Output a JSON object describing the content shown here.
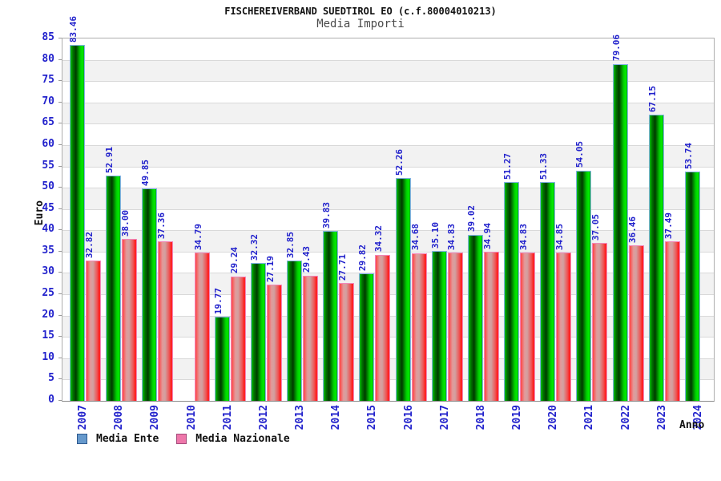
{
  "chart_data": {
    "type": "bar",
    "title": "FISCHEREIVERBAND SUEDTIROL EO (c.f.80004010213)",
    "subtitle": "Media Importi",
    "xlabel": "Anno",
    "ylabel": "Euro",
    "ylim": [
      0,
      85
    ],
    "ytick_step": 5,
    "yticks": [
      0,
      5,
      10,
      15,
      20,
      25,
      30,
      35,
      40,
      45,
      50,
      55,
      60,
      65,
      70,
      75,
      80,
      85
    ],
    "grid": true,
    "background_bands": true,
    "legend_position": "bottom-left",
    "value_label_format": "0.00",
    "categories": [
      "2007",
      "2008",
      "2009",
      "2010",
      "2011",
      "2012",
      "2013",
      "2014",
      "2015",
      "2016",
      "2017",
      "2018",
      "2019",
      "2020",
      "2021",
      "2022",
      "2023",
      "2024"
    ],
    "series": [
      {
        "name": "Media Ente",
        "legend_color": "#6699cc",
        "legend_border": "#2f5a8f",
        "bar_border": "#85b2e8",
        "bar_gradient": [
          "#00c000 0%",
          "#007300 18%",
          "#003c00 40%",
          "#00cc00 72%",
          "#00ee00 88%",
          "#00a800 100%"
        ],
        "values": [
          83.46,
          52.91,
          49.85,
          null,
          19.77,
          32.32,
          32.85,
          39.83,
          29.82,
          52.26,
          35.1,
          39.02,
          51.27,
          51.33,
          54.05,
          79.06,
          67.15,
          53.74
        ]
      },
      {
        "name": "Media Nazionale",
        "legend_color": "#ee77aa",
        "legend_border": "#a34a7a",
        "bar_border": "#f287ba",
        "bar_gradient": [
          "#ff4444 0%",
          "#e39a9a 28%",
          "#d2a0a0 48%",
          "#ee5555 78%",
          "#ff1515 96%",
          "#ff4040 100%"
        ],
        "values": [
          32.82,
          38.0,
          37.36,
          34.79,
          29.24,
          27.19,
          29.43,
          27.71,
          34.32,
          34.68,
          34.83,
          34.94,
          34.83,
          34.85,
          37.05,
          36.46,
          37.49,
          null
        ]
      }
    ]
  },
  "palette": {
    "axis_label_blue": "#2222cc",
    "grid_line": "#d9d9d9",
    "band_gray": "#f2f2f2",
    "band_white": "#ffffff",
    "plot_frame": "#aeaeae",
    "axis_title_black": "#111111"
  }
}
